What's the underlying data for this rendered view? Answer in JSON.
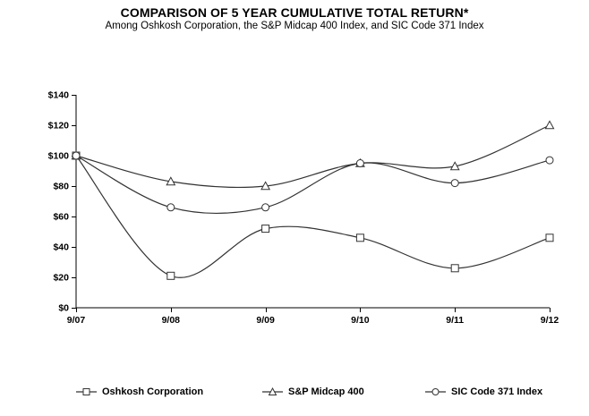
{
  "chart_data": {
    "type": "line",
    "title": "COMPARISON OF 5 YEAR CUMULATIVE TOTAL RETURN*",
    "subtitle": "Among Oshkosh Corporation, the S&P Midcap 400 Index, and SIC Code 371 Index",
    "categories": [
      "9/07",
      "9/08",
      "9/09",
      "9/10",
      "9/11",
      "9/12"
    ],
    "series": [
      {
        "name": "Oshkosh Corporation",
        "marker": "square",
        "values": [
          100,
          21,
          52,
          46,
          26,
          46
        ]
      },
      {
        "name": "S&P Midcap 400",
        "marker": "triangle",
        "values": [
          100,
          83,
          80,
          95,
          93,
          120
        ]
      },
      {
        "name": "SIC Code 371 Index",
        "marker": "circle",
        "values": [
          100,
          66,
          66,
          95,
          82,
          97
        ]
      }
    ],
    "ylim": [
      0,
      140
    ],
    "ytick_values": [
      0,
      20,
      40,
      60,
      80,
      100,
      120,
      140
    ],
    "ytick_labels": [
      "$0",
      "$20",
      "$40",
      "$60",
      "$80",
      "$100",
      "$120",
      "$140"
    ],
    "smooth": true,
    "grid": false,
    "legend_position": "bottom",
    "colors": {
      "line": "#333333",
      "axis": "#000000",
      "text": "#000000",
      "marker_fill": "#ffffff",
      "background": "#ffffff"
    }
  }
}
